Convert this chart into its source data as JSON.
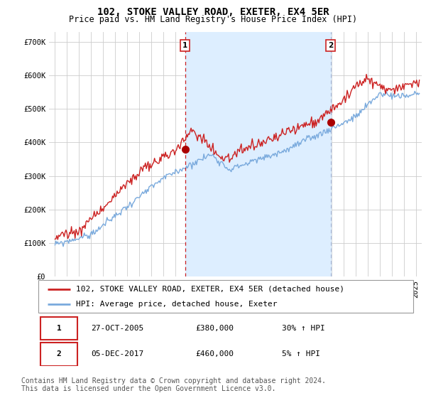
{
  "title": "102, STOKE VALLEY ROAD, EXETER, EX4 5ER",
  "subtitle": "Price paid vs. HM Land Registry's House Price Index (HPI)",
  "ylabel_ticks": [
    "£0",
    "£100K",
    "£200K",
    "£300K",
    "£400K",
    "£500K",
    "£600K",
    "£700K"
  ],
  "ytick_values": [
    0,
    100000,
    200000,
    300000,
    400000,
    500000,
    600000,
    700000
  ],
  "ylim": [
    0,
    730000
  ],
  "xlim_start": 1994.5,
  "xlim_end": 2025.5,
  "marker1_x": 2005.82,
  "marker1_y": 380000,
  "marker2_x": 2017.92,
  "marker2_y": 460000,
  "legend_entry1": "102, STOKE VALLEY ROAD, EXETER, EX4 5ER (detached house)",
  "legend_entry2": "HPI: Average price, detached house, Exeter",
  "table_row1": [
    "1",
    "27-OCT-2005",
    "£380,000",
    "30% ↑ HPI"
  ],
  "table_row2": [
    "2",
    "05-DEC-2017",
    "£460,000",
    "5% ↑ HPI"
  ],
  "footnote1": "Contains HM Land Registry data © Crown copyright and database right 2024.",
  "footnote2": "This data is licensed under the Open Government Licence v3.0.",
  "line_color_red": "#cc2222",
  "line_color_blue": "#7aaadd",
  "shade_color": "#ddeeff",
  "marker_dot_color": "#aa0000",
  "vline1_color": "#cc2222",
  "vline2_color": "#aabbdd",
  "background_color": "#ffffff",
  "grid_color": "#cccccc",
  "title_fontsize": 10,
  "subtitle_fontsize": 8.5,
  "tick_fontsize": 7.5,
  "legend_fontsize": 8,
  "table_fontsize": 8,
  "footnote_fontsize": 7
}
